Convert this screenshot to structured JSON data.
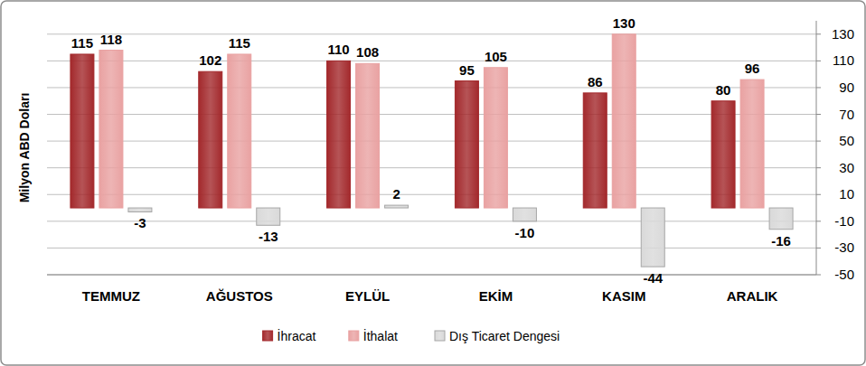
{
  "chart_data": {
    "type": "bar",
    "ylabel": "Milyon ABD Doları",
    "categories": [
      "TEMMUZ",
      "AĞUSTOS",
      "EYLÜL",
      "EKİM",
      "KASIM",
      "ARALIK"
    ],
    "series": [
      {
        "name": "İhracat",
        "color": "#a3292c",
        "values": [
          115,
          102,
          110,
          95,
          86,
          80
        ]
      },
      {
        "name": "İthalat",
        "color": "#e9a2a2",
        "values": [
          118,
          115,
          108,
          105,
          130,
          96
        ]
      },
      {
        "name": "Dış Ticaret Dengesi",
        "color": "#d9d9d9",
        "values": [
          -3,
          -13,
          2,
          -10,
          -44,
          -16
        ]
      }
    ],
    "ylim": [
      -50,
      140
    ],
    "yticks": [
      -50,
      -30,
      -10,
      10,
      30,
      50,
      70,
      90,
      110,
      130
    ],
    "grid": true,
    "data_labels": true,
    "legend": "bottom"
  }
}
